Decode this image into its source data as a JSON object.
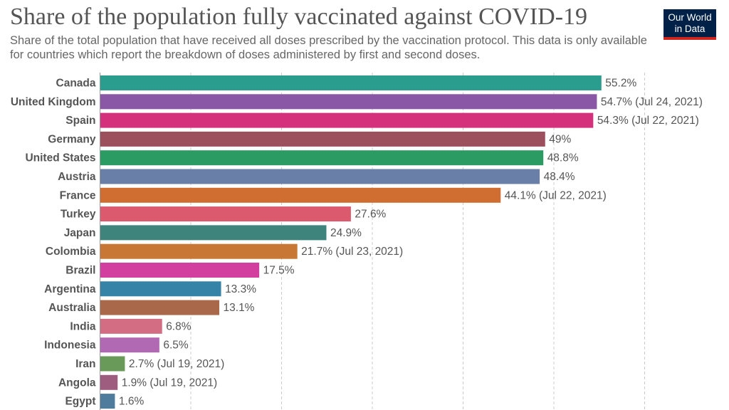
{
  "header": {
    "title": "Share of the population fully vaccinated against COVID-19",
    "subtitle": "Share of the total population that have received all doses prescribed by the vaccination protocol. This data is only available for countries which report the breakdown of doses administered by first and second doses."
  },
  "logo": {
    "line1": "Our World",
    "line2": "in Data"
  },
  "colors": {
    "background": "#ffffff",
    "grid": "#cccccc",
    "logo_bg": "#002147",
    "logo_accent": "#ce261e"
  },
  "chart_data": {
    "type": "bar",
    "orientation": "horizontal",
    "title": "Share of the population fully vaccinated against COVID-19",
    "xlim": [
      0,
      60
    ],
    "grid": true,
    "categories": [
      "Canada",
      "United Kingdom",
      "Spain",
      "Germany",
      "United States",
      "Austria",
      "France",
      "Turkey",
      "Japan",
      "Colombia",
      "Brazil",
      "Argentina",
      "Australia",
      "India",
      "Indonesia",
      "Iran",
      "Angola",
      "Egypt"
    ],
    "values": [
      55.2,
      54.7,
      54.3,
      49,
      48.8,
      48.4,
      44.1,
      27.6,
      24.9,
      21.7,
      17.5,
      13.3,
      13.1,
      6.8,
      6.5,
      2.7,
      1.9,
      1.6
    ],
    "value_labels": [
      "55.2%",
      "54.7% (Jul 24, 2021)",
      "54.3% (Jul 22, 2021)",
      "49%",
      "48.8%",
      "48.4%",
      "44.1% (Jul 22, 2021)",
      "27.6%",
      "24.9%",
      "21.7% (Jul 23, 2021)",
      "17.5%",
      "13.3%",
      "13.1%",
      "6.8%",
      "6.5%",
      "2.7% (Jul 19, 2021)",
      "1.9% (Jul 19, 2021)",
      "1.6%"
    ],
    "colors": [
      "#2a9d8f",
      "#8957a5",
      "#d5307c",
      "#9c4f5c",
      "#2b9a63",
      "#6a7fa8",
      "#d06d30",
      "#dc5a6d",
      "#3e847c",
      "#c87834",
      "#d33f9f",
      "#3584a8",
      "#a9684a",
      "#d26d84",
      "#b269b4",
      "#6a9a5a",
      "#9e5d7f",
      "#4f7b9c"
    ]
  }
}
